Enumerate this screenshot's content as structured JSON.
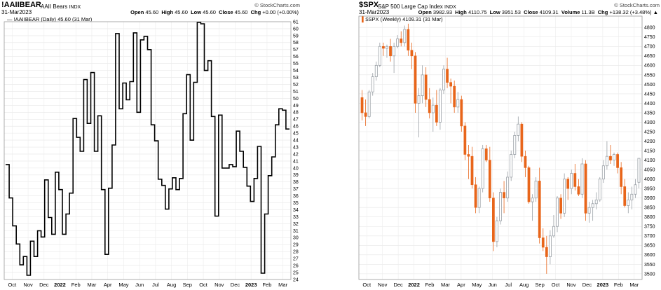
{
  "left": {
    "symbol": "!AAIIBEAR",
    "name": "AAII Bears",
    "exchange": "INDX",
    "date": "31-Mar2023",
    "credit": "© StockCharts.com",
    "open_label": "Open",
    "open": "45.60",
    "high_label": "High",
    "high": "45.60",
    "low_label": "Low",
    "low": "45.60",
    "close_label": "Close",
    "close": "45.60",
    "chg_label": "Chg",
    "chg": "+0.00 (+0.00%)",
    "legend": "!AAIIBEAR (Daily) 45.60 (31 Mar)",
    "line_color": "#000000"
  },
  "right": {
    "symbol": "$SPX",
    "name": "S&P 500 Large Cap Index",
    "exchange": "INDX",
    "date": "31-Mar2023",
    "credit": "© StockCharts.com",
    "open_label": "Open",
    "open": "3982.93",
    "high_label": "High",
    "high": "4110.75",
    "low_label": "Low",
    "low": "3951.53",
    "close_label": "Close",
    "close": "4109.31",
    "vol_label": "Volume",
    "volume": "11.3B",
    "chg_label": "Chg",
    "chg": "+138.32 (+3.48%)",
    "legend": "$SPX (Weekly) 4109.31 (31 Mar)",
    "up_color": "#9aa0a6",
    "down_color": "#e8651a"
  },
  "chart_data": [
    {
      "type": "line",
      "ylim": [
        24,
        61
      ],
      "yticks": [
        24,
        25,
        26,
        27,
        28,
        29,
        30,
        31,
        32,
        33,
        34,
        35,
        36,
        37,
        38,
        39,
        40,
        41,
        42,
        43,
        44,
        45,
        46,
        47,
        48,
        49,
        50,
        51,
        52,
        53,
        54,
        55,
        56,
        57,
        58,
        59,
        60,
        61
      ],
      "xticks": [
        {
          "label": "Oct",
          "bold": false
        },
        {
          "label": "Nov",
          "bold": false
        },
        {
          "label": "Dec",
          "bold": false
        },
        {
          "label": "2022",
          "bold": true
        },
        {
          "label": "Feb",
          "bold": false
        },
        {
          "label": "Mar",
          "bold": false
        },
        {
          "label": "Apr",
          "bold": false
        },
        {
          "label": "May",
          "bold": false
        },
        {
          "label": "Jun",
          "bold": false
        },
        {
          "label": "Jul",
          "bold": false
        },
        {
          "label": "Aug",
          "bold": false
        },
        {
          "label": "Sep",
          "bold": false
        },
        {
          "label": "Oct",
          "bold": false
        },
        {
          "label": "Nov",
          "bold": false
        },
        {
          "label": "Dec",
          "bold": false
        },
        {
          "label": "2023",
          "bold": true
        },
        {
          "label": "Feb",
          "bold": false
        },
        {
          "label": "Mar",
          "bold": false
        }
      ],
      "values": [
        40.5,
        35.7,
        31.7,
        29.1,
        26.1,
        27.3,
        24.6,
        29.5,
        27.3,
        31.0,
        30.1,
        38.3,
        32.9,
        30.5,
        39.4,
        36.9,
        30.5,
        33.4,
        36.4,
        47.1,
        44.4,
        42.4,
        52.7,
        46.4,
        53.7,
        42.4,
        47.5,
        36.9,
        27.6,
        37.1,
        43.3,
        59.3,
        48.5,
        52.2,
        49.8,
        52.4,
        59.4,
        48.0,
        58.4,
        58.9,
        57.0,
        46.2,
        43.9,
        38.4,
        37.5,
        34.1,
        37.0,
        38.6,
        36.9,
        38.5,
        47.8,
        53.4,
        44.0,
        52.3,
        60.9,
        60.7,
        54.0,
        55.4,
        47.4,
        33.1,
        47.6,
        40.0,
        40.0,
        40.5,
        40.2,
        45.3,
        42.4,
        40.1,
        37.4,
        35.2,
        38.5,
        43.1,
        24.9,
        33.4,
        38.9,
        41.6,
        46.2,
        48.5,
        48.3,
        45.6
      ]
    },
    {
      "type": "candlestick",
      "ylim": [
        3470,
        4860
      ],
      "yticks": [
        3500,
        3550,
        3600,
        3650,
        3700,
        3750,
        3800,
        3850,
        3900,
        3950,
        4000,
        4050,
        4100,
        4150,
        4200,
        4250,
        4300,
        4350,
        4400,
        4450,
        4500,
        4550,
        4600,
        4650,
        4700,
        4750,
        4800
      ],
      "xticks": [
        {
          "label": "Oct",
          "bold": false
        },
        {
          "label": "Nov",
          "bold": false
        },
        {
          "label": "Dec",
          "bold": false
        },
        {
          "label": "2022",
          "bold": true
        },
        {
          "label": "Feb",
          "bold": false
        },
        {
          "label": "Mar",
          "bold": false
        },
        {
          "label": "Apr",
          "bold": false
        },
        {
          "label": "May",
          "bold": false
        },
        {
          "label": "Jun",
          "bold": false
        },
        {
          "label": "Jul",
          "bold": false
        },
        {
          "label": "Aug",
          "bold": false
        },
        {
          "label": "Sep",
          "bold": false
        },
        {
          "label": "Oct",
          "bold": false
        },
        {
          "label": "Nov",
          "bold": false
        },
        {
          "label": "Dec",
          "bold": false
        },
        {
          "label": "2023",
          "bold": true
        },
        {
          "label": "Feb",
          "bold": false
        },
        {
          "label": "Mar",
          "bold": false
        }
      ],
      "series": [
        [
          4430,
          4470,
          4310,
          4350
        ],
        [
          4350,
          4420,
          4280,
          4330
        ],
        [
          4330,
          4470,
          4320,
          4460
        ],
        [
          4460,
          4560,
          4440,
          4540
        ],
        [
          4540,
          4620,
          4520,
          4600
        ],
        [
          4600,
          4720,
          4590,
          4700
        ],
        [
          4700,
          4720,
          4650,
          4690
        ],
        [
          4690,
          4710,
          4640,
          4700
        ],
        [
          4700,
          4740,
          4620,
          4650
        ],
        [
          4650,
          4720,
          4560,
          4700
        ],
        [
          4700,
          4760,
          4690,
          4740
        ],
        [
          4740,
          4780,
          4700,
          4720
        ],
        [
          4720,
          4810,
          4700,
          4790
        ],
        [
          4790,
          4820,
          4650,
          4680
        ],
        [
          4680,
          4720,
          4580,
          4650
        ],
        [
          4650,
          4670,
          4350,
          4400
        ],
        [
          4400,
          4480,
          4220,
          4440
        ],
        [
          4440,
          4600,
          4400,
          4550
        ],
        [
          4550,
          4590,
          4380,
          4420
        ],
        [
          4420,
          4480,
          4320,
          4350
        ],
        [
          4350,
          4430,
          4250,
          4390
        ],
        [
          4390,
          4470,
          4280,
          4300
        ],
        [
          4300,
          4480,
          4260,
          4470
        ],
        [
          4470,
          4600,
          4450,
          4580
        ],
        [
          4580,
          4640,
          4480,
          4510
        ],
        [
          4510,
          4530,
          4400,
          4490
        ],
        [
          4490,
          4520,
          4350,
          4380
        ],
        [
          4380,
          4460,
          4350,
          4420
        ],
        [
          4420,
          4440,
          4250,
          4280
        ],
        [
          4280,
          4300,
          4100,
          4130
        ],
        [
          4130,
          4180,
          4000,
          4120
        ],
        [
          4120,
          4170,
          3950,
          3970
        ],
        [
          3970,
          4010,
          3820,
          3850
        ],
        [
          3850,
          3960,
          3820,
          3950
        ],
        [
          3950,
          4180,
          3930,
          4160
        ],
        [
          4160,
          4180,
          4090,
          4100
        ],
        [
          4100,
          4170,
          3880,
          3900
        ],
        [
          3900,
          3930,
          3620,
          3670
        ],
        [
          3670,
          3800,
          3640,
          3780
        ],
        [
          3780,
          3950,
          3760,
          3930
        ],
        [
          3930,
          3990,
          3820,
          3900
        ],
        [
          3900,
          4040,
          3880,
          4010
        ],
        [
          4010,
          4150,
          3990,
          4130
        ],
        [
          4130,
          4250,
          4110,
          4230
        ],
        [
          4230,
          4330,
          4200,
          4290
        ],
        [
          4290,
          4300,
          4090,
          4120
        ],
        [
          4120,
          4150,
          4010,
          4060
        ],
        [
          4060,
          4070,
          3870,
          3880
        ],
        [
          3880,
          3920,
          3780,
          3900
        ],
        [
          3900,
          4010,
          3880,
          3990
        ],
        [
          3990,
          4060,
          3660,
          3690
        ],
        [
          3690,
          3740,
          3620,
          3640
        ],
        [
          3640,
          3700,
          3500,
          3590
        ],
        [
          3590,
          3730,
          3550,
          3700
        ],
        [
          3700,
          3810,
          3690,
          3750
        ],
        [
          3750,
          3910,
          3720,
          3900
        ],
        [
          3900,
          3920,
          3790,
          3820
        ],
        [
          3820,
          4030,
          3800,
          4000
        ],
        [
          4000,
          4010,
          3890,
          3950
        ],
        [
          3950,
          4050,
          3920,
          4030
        ],
        [
          4030,
          4080,
          3940,
          3960
        ],
        [
          3960,
          4000,
          3910,
          3920
        ],
        [
          3920,
          4110,
          3900,
          4080
        ],
        [
          4080,
          4100,
          3780,
          3820
        ],
        [
          3820,
          3880,
          3770,
          3850
        ],
        [
          3850,
          3890,
          3780,
          3870
        ],
        [
          3870,
          3930,
          3840,
          3890
        ],
        [
          3890,
          4010,
          3880,
          4000
        ],
        [
          4000,
          4100,
          3980,
          4070
        ],
        [
          4070,
          4200,
          4050,
          4120
        ],
        [
          4120,
          4180,
          4080,
          4100
        ],
        [
          4100,
          4140,
          4070,
          4130
        ],
        [
          4130,
          4140,
          4030,
          4060
        ],
        [
          4060,
          4090,
          3920,
          3960
        ],
        [
          3960,
          4000,
          3850,
          3860
        ],
        [
          3860,
          3930,
          3820,
          3890
        ],
        [
          3890,
          3960,
          3840,
          3920
        ],
        [
          3920,
          4000,
          3900,
          3970
        ],
        [
          3982.93,
          4110.75,
          3951.53,
          4109.31
        ]
      ]
    }
  ]
}
